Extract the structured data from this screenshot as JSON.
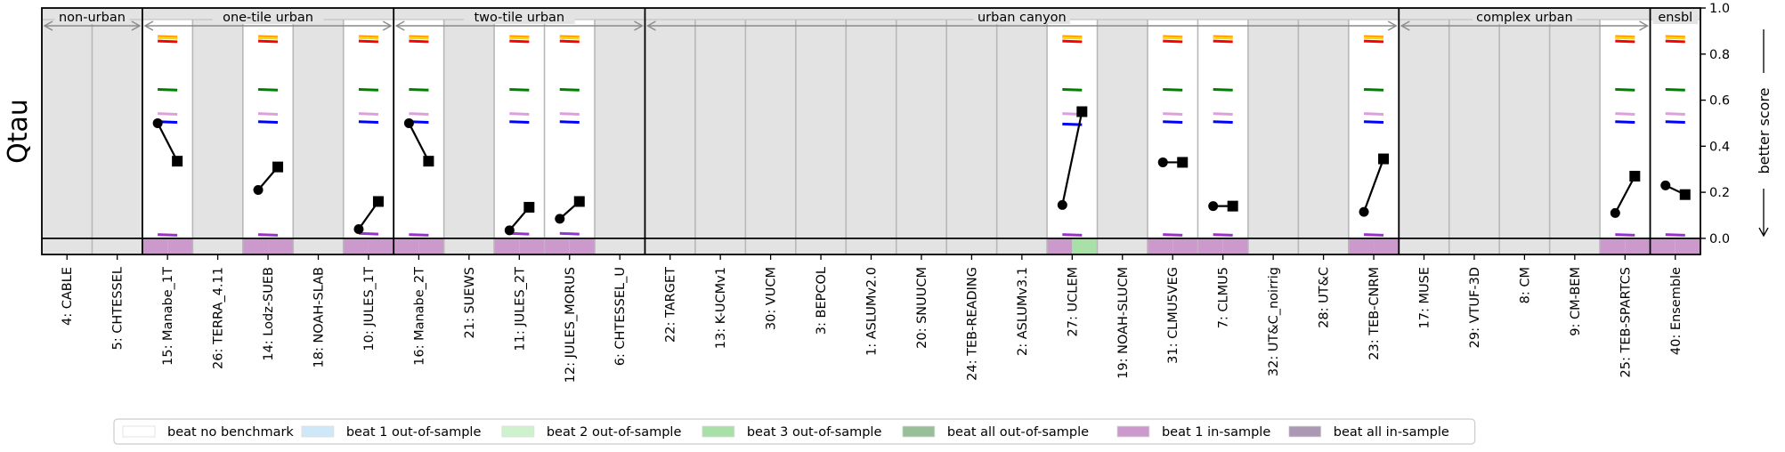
{
  "chart_data": {
    "type": "scatter",
    "ylabel": "Qtau",
    "y2label": "better score",
    "ylim": [
      -0.07,
      1.0
    ],
    "yticks": [
      0.0,
      0.2,
      0.4,
      0.6,
      0.8,
      1.0
    ],
    "grid": false,
    "legend_position": "bottom-center",
    "models": [
      "4: CABLE",
      "5: CHTESSEL",
      "15: Manabe_1T",
      "26: TERRA_4.11",
      "14: Lodz-SUEB",
      "18: NOAH-SLAB",
      "10: JULES_1T",
      "16: Manabe_2T",
      "21: SUEWS",
      "11: JULES_2T",
      "12: JULES_MORUS",
      "6: CHTESSEL_U",
      "22: TARGET",
      "13: K-UCMv1",
      "30: VUCM",
      "3: BEPCOL",
      "1: ASLUMv2.0",
      "20: SNUUCM",
      "24: TEB-READING",
      "2: ASLUMv3.1",
      "27: UCLEM",
      "19: NOAH-SLUCM",
      "31: CLMU5VEG",
      "7: CLMU5",
      "32: UT&C_noirrig",
      "28: UT&C",
      "23: TEB-CNRM",
      "17: MUSE",
      "29: VTUF-3D",
      "8: CM",
      "9: CM-BEM",
      "25: TEB-SPARTCS",
      "40: Ensemble"
    ],
    "groups": [
      {
        "label": "non-urban",
        "start": 0,
        "end": 1
      },
      {
        "label": "one-tile urban",
        "start": 2,
        "end": 6
      },
      {
        "label": "two-tile urban",
        "start": 7,
        "end": 11
      },
      {
        "label": "urban canyon",
        "start": 12,
        "end": 26
      },
      {
        "label": "complex urban",
        "start": 27,
        "end": 31
      },
      {
        "label": "ensbl",
        "start": 32,
        "end": 32
      }
    ],
    "benchmark_colors": [
      "#ff8c00",
      "#ff0000",
      "#ffd700",
      "#008000",
      "#dda0dd",
      "#0000ff",
      "#9932cc"
    ],
    "benchmarks": [
      {
        "index": 2,
        "values": [
          0.875,
          0.855,
          0.87,
          0.645,
          0.54,
          0.505,
          0.015
        ]
      },
      {
        "index": 4,
        "values": [
          0.875,
          0.855,
          0.87,
          0.645,
          0.54,
          0.505,
          0.015
        ]
      },
      {
        "index": 6,
        "values": [
          0.875,
          0.855,
          0.87,
          0.645,
          0.54,
          0.505,
          0.02
        ]
      },
      {
        "index": 7,
        "values": [
          0.875,
          0.855,
          0.87,
          0.645,
          0.54,
          0.505,
          0.015
        ]
      },
      {
        "index": 9,
        "values": [
          0.875,
          0.855,
          0.87,
          0.645,
          0.54,
          0.505,
          0.02
        ]
      },
      {
        "index": 10,
        "values": [
          0.875,
          0.855,
          0.87,
          0.645,
          0.54,
          0.505,
          0.02
        ]
      },
      {
        "index": 20,
        "values": [
          0.875,
          0.855,
          0.87,
          0.645,
          0.54,
          0.495,
          0.015
        ]
      },
      {
        "index": 22,
        "values": [
          0.875,
          0.855,
          0.87,
          0.645,
          0.54,
          0.505,
          0.015
        ]
      },
      {
        "index": 23,
        "values": [
          0.875,
          0.855,
          0.87,
          0.645,
          0.54,
          0.505,
          0.015
        ]
      },
      {
        "index": 26,
        "values": [
          0.875,
          0.855,
          0.87,
          0.645,
          0.54,
          0.505,
          0.015
        ]
      },
      {
        "index": 31,
        "values": [
          0.875,
          0.855,
          0.87,
          0.645,
          0.54,
          0.505,
          0.015
        ]
      },
      {
        "index": 32,
        "values": [
          0.875,
          0.855,
          0.87,
          0.645,
          0.54,
          0.505,
          0.015
        ]
      }
    ],
    "paired_scores": [
      {
        "index": 2,
        "circle": 0.5,
        "square": 0.335
      },
      {
        "index": 4,
        "circle": 0.21,
        "square": 0.31
      },
      {
        "index": 6,
        "circle": 0.04,
        "square": 0.16
      },
      {
        "index": 7,
        "circle": 0.5,
        "square": 0.335
      },
      {
        "index": 9,
        "circle": 0.035,
        "square": 0.135
      },
      {
        "index": 10,
        "circle": 0.085,
        "square": 0.16
      },
      {
        "index": 20,
        "circle": 0.145,
        "square": 0.55
      },
      {
        "index": 22,
        "circle": 0.33,
        "square": 0.33
      },
      {
        "index": 23,
        "circle": 0.14,
        "square": 0.14
      },
      {
        "index": 26,
        "circle": 0.115,
        "square": 0.345
      },
      {
        "index": 31,
        "circle": 0.11,
        "square": 0.27
      },
      {
        "index": 32,
        "circle": 0.23,
        "square": 0.19
      }
    ],
    "cell_colors": {
      "gray": "#e3e3e3",
      "white": "#ffffff",
      "beat_1_in_sample": "#cc99cc",
      "beat_3_out_of_sample": "#a8e0a8"
    },
    "bottom_strip": [
      {
        "index": 2,
        "halves": [
          "beat_1_in_sample",
          "beat_1_in_sample"
        ]
      },
      {
        "index": 4,
        "halves": [
          "beat_1_in_sample",
          "beat_1_in_sample"
        ]
      },
      {
        "index": 6,
        "halves": [
          "beat_1_in_sample",
          "beat_1_in_sample"
        ]
      },
      {
        "index": 7,
        "halves": [
          "beat_1_in_sample",
          "beat_1_in_sample"
        ]
      },
      {
        "index": 9,
        "halves": [
          "beat_1_in_sample",
          "beat_1_in_sample"
        ]
      },
      {
        "index": 10,
        "halves": [
          "beat_1_in_sample",
          "beat_1_in_sample"
        ]
      },
      {
        "index": 20,
        "halves": [
          "beat_1_in_sample",
          "beat_3_out_of_sample"
        ]
      },
      {
        "index": 22,
        "halves": [
          "beat_1_in_sample",
          "beat_1_in_sample"
        ]
      },
      {
        "index": 23,
        "halves": [
          "beat_1_in_sample",
          "beat_1_in_sample"
        ]
      },
      {
        "index": 26,
        "halves": [
          "beat_1_in_sample",
          "beat_1_in_sample"
        ]
      },
      {
        "index": 31,
        "halves": [
          "beat_1_in_sample",
          "beat_1_in_sample"
        ]
      },
      {
        "index": 32,
        "halves": [
          "beat_1_in_sample",
          "beat_1_in_sample"
        ]
      }
    ],
    "white_columns": [
      2,
      4,
      6,
      7,
      9,
      10,
      20,
      22,
      23,
      26,
      31,
      32
    ],
    "legend": [
      {
        "label": "beat no benchmark",
        "color": "#ffffff"
      },
      {
        "label": "beat 1 out-of-sample",
        "color": "#cfe8f7"
      },
      {
        "label": "beat 2 out-of-sample",
        "color": "#cdf2cd"
      },
      {
        "label": "beat 3 out-of-sample",
        "color": "#a8e0a8"
      },
      {
        "label": "beat all out-of-sample",
        "color": "#99bf99"
      },
      {
        "label": "beat 1 in-sample",
        "color": "#cc99cc"
      },
      {
        "label": "beat all in-sample",
        "color": "#ab99b3"
      }
    ]
  }
}
